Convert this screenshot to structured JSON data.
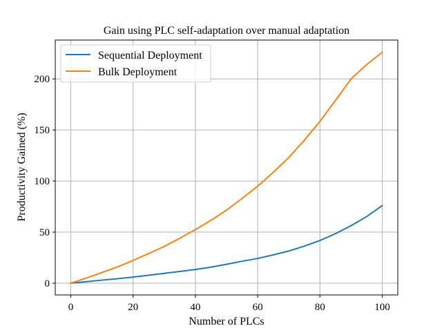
{
  "chart_data": {
    "type": "line",
    "title": "Gain using PLC self-adaptation over manual adaptation",
    "xlabel": "Number of PLCs",
    "ylabel": "Productivity Gained (%)",
    "xlim": [
      -5,
      105
    ],
    "ylim": [
      -11.5,
      238
    ],
    "xticks": [
      0,
      20,
      40,
      60,
      80,
      100
    ],
    "yticks": [
      0,
      50,
      100,
      150,
      200
    ],
    "grid": true,
    "legend_position": "upper-left",
    "x": [
      0,
      5,
      10,
      15,
      20,
      25,
      30,
      35,
      40,
      45,
      50,
      55,
      60,
      65,
      70,
      75,
      80,
      85,
      90,
      95,
      100
    ],
    "series": [
      {
        "name": "Sequential Deployment",
        "color": "#1f77b4",
        "values": [
          0,
          1.5,
          3,
          4.4,
          6,
          7.8,
          9.6,
          11.5,
          13.4,
          15.7,
          18.5,
          21.5,
          24.2,
          27.7,
          31.5,
          36.3,
          41.8,
          48.5,
          56.3,
          65.2,
          76
        ]
      },
      {
        "name": "Bulk Deployment",
        "color": "#ff7f0e",
        "values": [
          0,
          5,
          10.5,
          15.9,
          22.3,
          29,
          36,
          44,
          52.5,
          61.5,
          71.5,
          83,
          95,
          108.5,
          123,
          140,
          158.5,
          179,
          200,
          214,
          226
        ]
      }
    ]
  }
}
